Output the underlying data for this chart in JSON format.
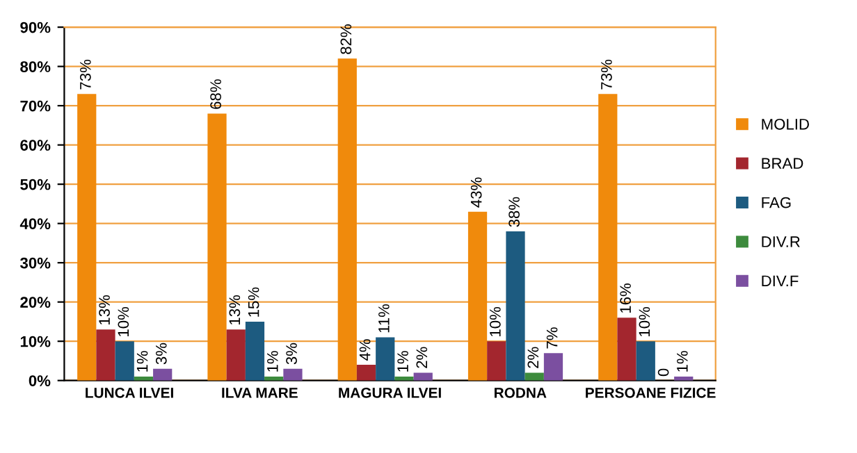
{
  "chart_data": {
    "type": "bar",
    "categories": [
      "LUNCA ILVEI",
      "ILVA MARE",
      "MAGURA ILVEI",
      "RODNA",
      "PERSOANE FIZICE"
    ],
    "series": [
      {
        "name": "MOLID",
        "color": "#f08a0c",
        "values": [
          73,
          68,
          82,
          43,
          73
        ],
        "value_labels": [
          "73%",
          "68%",
          "82%",
          "43%",
          "73%"
        ]
      },
      {
        "name": "BRAD",
        "color": "#a3262e",
        "values": [
          13,
          13,
          4,
          10,
          16
        ],
        "value_labels": [
          "13%",
          "13%",
          "4%",
          "10%",
          "16%"
        ]
      },
      {
        "name": "FAG",
        "color": "#1d5b80",
        "values": [
          10,
          15,
          11,
          38,
          10
        ],
        "value_labels": [
          "10%",
          "15%",
          "11%",
          "38%",
          "10%"
        ]
      },
      {
        "name": "DIV.R",
        "color": "#3d8b3d",
        "values": [
          1,
          1,
          1,
          2,
          0
        ],
        "value_labels": [
          "1%",
          "1%",
          "1%",
          "2%",
          "0"
        ]
      },
      {
        "name": "DIV.F",
        "color": "#7b4fa0",
        "values": [
          3,
          3,
          2,
          7,
          1
        ],
        "value_labels": [
          "3%",
          "3%",
          "2%",
          "7%",
          "1%"
        ]
      }
    ],
    "ylim": [
      0,
      90
    ],
    "yticks": [
      {
        "value": 0,
        "label": "0%"
      },
      {
        "value": 10,
        "label": "10%"
      },
      {
        "value": 20,
        "label": "20%"
      },
      {
        "value": 30,
        "label": "30%"
      },
      {
        "value": 40,
        "label": "40%"
      },
      {
        "value": 50,
        "label": "50%"
      },
      {
        "value": 60,
        "label": "60%"
      },
      {
        "value": 70,
        "label": "70%"
      },
      {
        "value": 80,
        "label": "80%"
      },
      {
        "value": 90,
        "label": "90%"
      }
    ],
    "grid": "y",
    "legend": "right"
  }
}
